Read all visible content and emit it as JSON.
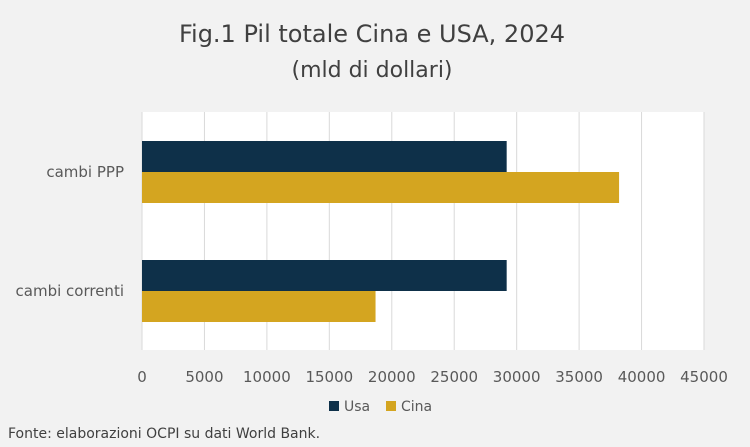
{
  "title": "Fig.1 Pil totale Cina e USA, 2024",
  "subtitle": "(mld di dollari)",
  "source": "Fonte: elaborazioni OCPI su dati World Bank.",
  "chart_data": {
    "type": "bar",
    "orientation": "horizontal",
    "title": "Fig.1 Pil totale Cina e USA, 2024",
    "subtitle": "(mld di dollari)",
    "categories": [
      "cambi PPP",
      "cambi correnti"
    ],
    "series": [
      {
        "name": "Usa",
        "color": "#0e3049",
        "values": [
          29200,
          29200
        ]
      },
      {
        "name": "Cina",
        "color": "#d4a520",
        "values": [
          38200,
          18700
        ]
      }
    ],
    "xlim": [
      0,
      45000
    ],
    "xticks": [
      "0",
      "5000",
      "10000",
      "15000",
      "20000",
      "25000",
      "30000",
      "35000",
      "40000",
      "45000"
    ],
    "xtick_values": [
      0,
      5000,
      10000,
      15000,
      20000,
      25000,
      30000,
      35000,
      40000,
      45000
    ],
    "grid": true,
    "legend": "bottom"
  }
}
